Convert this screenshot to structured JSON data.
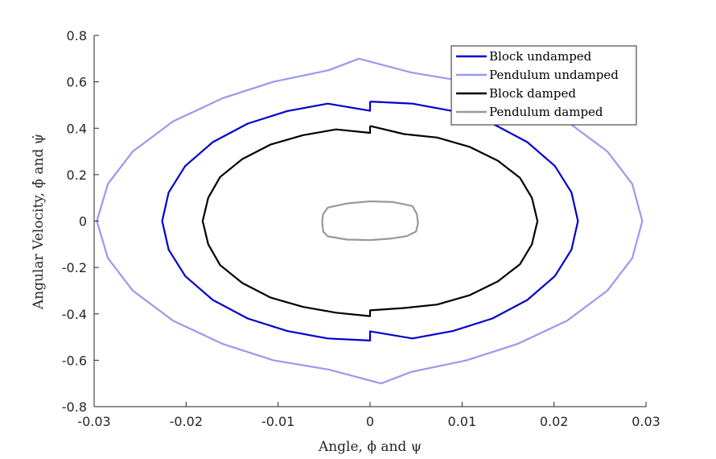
{
  "chart_data": {
    "type": "line",
    "title": "",
    "xlabel": "Angle, ϕ and ψ",
    "ylabel": "Angular Velocity, ϕ̇ and ψ̇",
    "xlim": [
      -0.03,
      0.03
    ],
    "ylim": [
      -0.8,
      0.8
    ],
    "xticks": [
      -0.03,
      -0.02,
      -0.01,
      0,
      0.01,
      0.02,
      0.03
    ],
    "xtick_labels": [
      "-0.03",
      "-0.02",
      "-0.01",
      "0",
      "0.01",
      "0.02",
      "0.03"
    ],
    "yticks": [
      -0.8,
      -0.6,
      -0.4,
      -0.2,
      0,
      0.2,
      0.4,
      0.6,
      0.8
    ],
    "ytick_labels": [
      "-0.8",
      "-0.6",
      "-0.4",
      "-0.2",
      "0",
      "0.2",
      "0.4",
      "0.6",
      "0.8"
    ],
    "grid": false,
    "legend_position": "top-right",
    "series": [
      {
        "name": "Block undamped",
        "color": "#0000cc",
        "points": [
          [
            0,
            0.515
          ],
          [
            0.0046,
            0.506
          ],
          [
            0.009,
            0.474
          ],
          [
            0.0133,
            0.42
          ],
          [
            0.0171,
            0.34
          ],
          [
            0.0201,
            0.237
          ],
          [
            0.0219,
            0.123
          ],
          [
            0.0226,
            0
          ],
          [
            0.0219,
            -0.123
          ],
          [
            0.0201,
            -0.237
          ],
          [
            0.0171,
            -0.34
          ],
          [
            0.0133,
            -0.42
          ],
          [
            0.009,
            -0.474
          ],
          [
            0.0046,
            -0.506
          ],
          [
            0,
            -0.475
          ],
          [
            0,
            -0.515
          ],
          [
            -0.0046,
            -0.506
          ],
          [
            -0.009,
            -0.474
          ],
          [
            -0.0133,
            -0.42
          ],
          [
            -0.0171,
            -0.34
          ],
          [
            -0.0201,
            -0.237
          ],
          [
            -0.0219,
            -0.123
          ],
          [
            -0.0226,
            0
          ],
          [
            -0.0219,
            0.123
          ],
          [
            -0.0201,
            0.237
          ],
          [
            -0.0171,
            0.34
          ],
          [
            -0.0133,
            0.42
          ],
          [
            -0.009,
            0.474
          ],
          [
            -0.0046,
            0.506
          ],
          [
            0,
            0.475
          ],
          [
            0,
            0.515
          ]
        ]
      },
      {
        "name": "Pendulum undamped",
        "color": "#9999ee",
        "points": [
          [
            -0.0012,
            0.7
          ],
          [
            0.0045,
            0.64
          ],
          [
            0.0105,
            0.6
          ],
          [
            0.016,
            0.53
          ],
          [
            0.0214,
            0.43
          ],
          [
            0.0258,
            0.3
          ],
          [
            0.0285,
            0.16
          ],
          [
            0.0296,
            0
          ],
          [
            0.0285,
            -0.16
          ],
          [
            0.0258,
            -0.3
          ],
          [
            0.0214,
            -0.43
          ],
          [
            0.016,
            -0.53
          ],
          [
            0.0105,
            -0.6
          ],
          [
            0.0045,
            -0.65
          ],
          [
            0.0012,
            -0.7
          ],
          [
            -0.0045,
            -0.64
          ],
          [
            -0.0105,
            -0.6
          ],
          [
            -0.016,
            -0.53
          ],
          [
            -0.0214,
            -0.43
          ],
          [
            -0.0258,
            -0.3
          ],
          [
            -0.0285,
            -0.16
          ],
          [
            -0.0297,
            0
          ],
          [
            -0.0285,
            0.16
          ],
          [
            -0.0258,
            0.3
          ],
          [
            -0.0214,
            0.43
          ],
          [
            -0.016,
            0.53
          ],
          [
            -0.0105,
            0.6
          ],
          [
            -0.0045,
            0.65
          ],
          [
            -0.0012,
            0.7
          ]
        ]
      },
      {
        "name": "Block damped",
        "color": "#000000",
        "points": [
          [
            0,
            0.41
          ],
          [
            0.0037,
            0.375
          ],
          [
            0.0073,
            0.36
          ],
          [
            0.0108,
            0.32
          ],
          [
            0.0139,
            0.26
          ],
          [
            0.0163,
            0.186
          ],
          [
            0.0176,
            0.1
          ],
          [
            0.0182,
            0
          ],
          [
            0.0176,
            -0.1
          ],
          [
            0.0163,
            -0.186
          ],
          [
            0.0139,
            -0.26
          ],
          [
            0.0108,
            -0.32
          ],
          [
            0.0073,
            -0.36
          ],
          [
            0.0037,
            -0.375
          ],
          [
            0,
            -0.385
          ],
          [
            0,
            -0.41
          ],
          [
            -0.0037,
            -0.395
          ],
          [
            -0.0073,
            -0.37
          ],
          [
            -0.0108,
            -0.33
          ],
          [
            -0.0139,
            -0.267
          ],
          [
            -0.0163,
            -0.19
          ],
          [
            -0.0176,
            -0.1
          ],
          [
            -0.0182,
            0
          ],
          [
            -0.0176,
            0.1
          ],
          [
            -0.0163,
            0.19
          ],
          [
            -0.0139,
            0.267
          ],
          [
            -0.0108,
            0.33
          ],
          [
            -0.0073,
            0.37
          ],
          [
            -0.0037,
            0.395
          ],
          [
            0,
            0.38
          ],
          [
            0,
            0.41
          ]
        ]
      },
      {
        "name": "Pendulum damped",
        "color": "#999999",
        "points": [
          [
            0,
            0.085
          ],
          [
            0.0025,
            0.082
          ],
          [
            0.0046,
            0.065
          ],
          [
            0.0051,
            0.03
          ],
          [
            0.0052,
            -0.01
          ],
          [
            0.005,
            -0.045
          ],
          [
            0.004,
            -0.065
          ],
          [
            0.0022,
            -0.076
          ],
          [
            0,
            -0.082
          ],
          [
            -0.0025,
            -0.08
          ],
          [
            -0.0046,
            -0.066
          ],
          [
            -0.0051,
            -0.045
          ],
          [
            -0.0052,
            0
          ],
          [
            -0.0051,
            0.03
          ],
          [
            -0.0046,
            0.058
          ],
          [
            -0.0025,
            0.076
          ],
          [
            0,
            0.085
          ]
        ]
      }
    ]
  }
}
